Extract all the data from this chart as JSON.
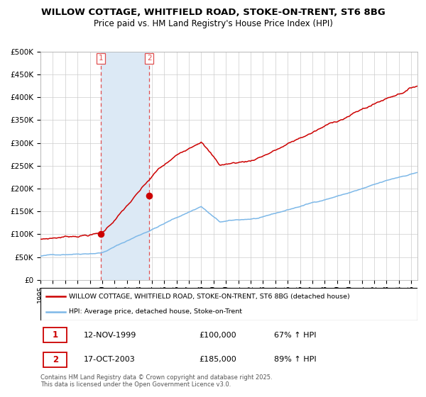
{
  "title_line1": "WILLOW COTTAGE, WHITFIELD ROAD, STOKE-ON-TRENT, ST6 8BG",
  "title_line2": "Price paid vs. HM Land Registry's House Price Index (HPI)",
  "ylabel_ticks": [
    "£0",
    "£50K",
    "£100K",
    "£150K",
    "£200K",
    "£250K",
    "£300K",
    "£350K",
    "£400K",
    "£450K",
    "£500K"
  ],
  "ytick_values": [
    0,
    50000,
    100000,
    150000,
    200000,
    250000,
    300000,
    350000,
    400000,
    450000,
    500000
  ],
  "ylim": [
    0,
    500000
  ],
  "xlim_start": 1995.0,
  "xlim_end": 2025.5,
  "sale1_date": 1999.87,
  "sale1_price": 100000,
  "sale1_label": "1",
  "sale2_date": 2003.8,
  "sale2_price": 185000,
  "sale2_label": "2",
  "shade_color": "#dce9f5",
  "vline_color": "#e05050",
  "dot_color": "#cc0000",
  "red_line_color": "#cc0000",
  "blue_line_color": "#7db8e8",
  "legend_red_label": "WILLOW COTTAGE, WHITFIELD ROAD, STOKE-ON-TRENT, ST6 8BG (detached house)",
  "legend_blue_label": "HPI: Average price, detached house, Stoke-on-Trent",
  "table_row1": [
    "1",
    "12-NOV-1999",
    "£100,000",
    "67% ↑ HPI"
  ],
  "table_row2": [
    "2",
    "17-OCT-2003",
    "£185,000",
    "89% ↑ HPI"
  ],
  "footnote": "Contains HM Land Registry data © Crown copyright and database right 2025.\nThis data is licensed under the Open Government Licence v3.0.",
  "bg_color": "#ffffff",
  "grid_color": "#cccccc"
}
